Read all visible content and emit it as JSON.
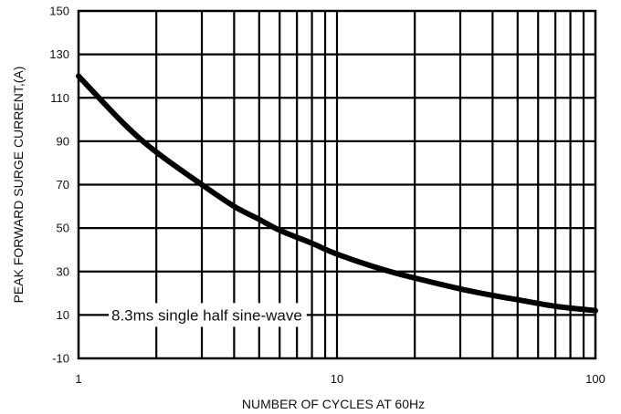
{
  "chart_data": {
    "type": "line",
    "xlabel": "NUMBER OF CYCLES AT 60Hz",
    "ylabel": "PEAK FORWARD SURGE CURRENT,(A)",
    "x_scale": "log",
    "xlim": [
      1,
      100
    ],
    "ylim": [
      -10,
      150
    ],
    "x_ticks": [
      "1",
      "10",
      "100"
    ],
    "y_ticks": [
      "150",
      "130",
      "110",
      "90",
      "70",
      "50",
      "30",
      "10",
      "-10"
    ],
    "grid": true,
    "annotation": "8.3ms single half sine-wave",
    "series": [
      {
        "x": [
          1,
          1.5,
          2,
          3,
          4,
          5,
          6,
          8,
          10,
          15,
          20,
          30,
          40,
          50,
          70,
          100
        ],
        "y": [
          120,
          98,
          85,
          70,
          60,
          54,
          49,
          43,
          38,
          31,
          27,
          22,
          19,
          17,
          14,
          12
        ]
      }
    ],
    "line_color": "#000000"
  }
}
